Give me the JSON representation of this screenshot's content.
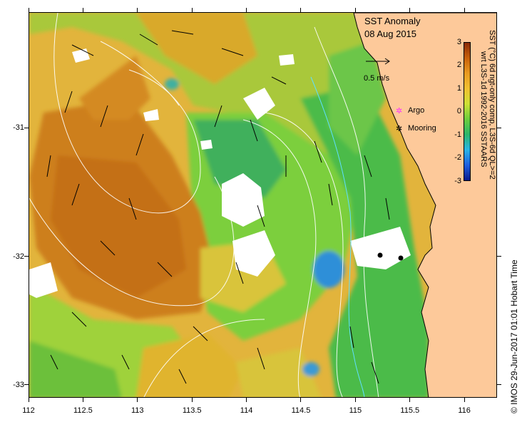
{
  "title": "SST Anomaly",
  "date": "08 Aug 2015",
  "scale_vector_label": "0.5 m/s",
  "legend": {
    "argo_label": "Argo",
    "mooring_label": "Mooring",
    "argo_color": "#ff33ff",
    "mooring_color": "#000000"
  },
  "colorbar": {
    "title_line1": "SST (°C) 6d ngt-only comp, L3S-6d QL>=2",
    "title_line2": "wrt L3S-1d 1992-2016 SSTAARS",
    "ticks": [
      "3",
      "2",
      "1",
      "0",
      "-1",
      "-2",
      "-3"
    ],
    "range": [
      -3,
      3
    ],
    "stops": [
      "#0a1a8c",
      "#1e5fe0",
      "#2ab4e6",
      "#2ab56a",
      "#6ccd3c",
      "#cde034",
      "#f0c030",
      "#e89a20",
      "#c8600a",
      "#8a2a06"
    ]
  },
  "axes": {
    "x_ticks": [
      "112",
      "112.5",
      "113",
      "113.5",
      "114",
      "114.5",
      "115",
      "115.5",
      "116"
    ],
    "y_ticks": [
      "-31",
      "-32",
      "-33"
    ],
    "x_range": [
      112,
      116.3
    ],
    "y_range": [
      -33.1,
      -30.1
    ]
  },
  "footer": "© IMOS 29-Jun-2017 01:01 Hobart Time",
  "colors": {
    "land": "#fdc99a",
    "warm": "#d98b1e",
    "hot": "#c76e12",
    "mild": "#e6c03a",
    "neutral": "#7ccf3d",
    "cool": "#2aa86a",
    "cold": "#2d8fd8",
    "missing": "#ffffff"
  }
}
